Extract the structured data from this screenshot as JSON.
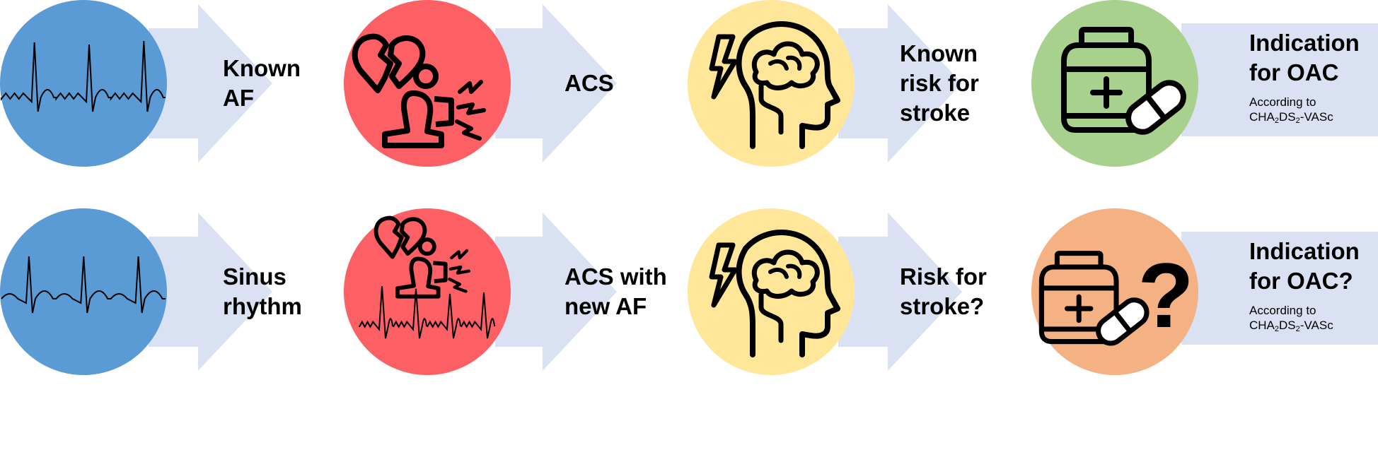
{
  "colors": {
    "arrow": "#d9e1f2",
    "blue": "#5b9bd5",
    "red": "#fc6065",
    "yellow": "#ffe699",
    "green": "#a9d18e",
    "orange": "#f4b183"
  },
  "rows": [
    {
      "steps": [
        {
          "circle_color": "blue",
          "icon": "ecg-af-icon",
          "label_lines": [
            "Known",
            "AF"
          ]
        },
        {
          "circle_color": "red",
          "icon": "heartbreak-person-icon",
          "label_lines": [
            "ACS"
          ]
        },
        {
          "circle_color": "yellow",
          "icon": "head-brain-lightning-icon",
          "label_lines": [
            "Known",
            "risk for",
            "stroke"
          ]
        },
        {
          "circle_color": "green",
          "icon": "medicine-bottle-pill-icon",
          "label_lines": [
            "Indication",
            "for OAC"
          ],
          "note": "According to",
          "score": {
            "a": "CHA",
            "s1": "2",
            "b": "DS",
            "s2": "2",
            "c": "-VASc"
          }
        }
      ]
    },
    {
      "steps": [
        {
          "circle_color": "blue",
          "icon": "ecg-sinus-icon",
          "label_lines": [
            "Sinus",
            "rhythm"
          ]
        },
        {
          "circle_color": "red",
          "icon": "heartbreak-person-ecg-icon",
          "label_lines": [
            "ACS with",
            "new AF"
          ]
        },
        {
          "circle_color": "yellow",
          "icon": "head-brain-lightning-icon",
          "label_lines": [
            "Risk for",
            "stroke?"
          ]
        },
        {
          "circle_color": "orange",
          "icon": "medicine-question-icon",
          "label_lines": [
            "Indication",
            "for OAC?"
          ],
          "note": "According to",
          "score": {
            "a": "CHA",
            "s1": "2",
            "b": "DS",
            "s2": "2",
            "c": "-VASc"
          }
        }
      ]
    }
  ]
}
